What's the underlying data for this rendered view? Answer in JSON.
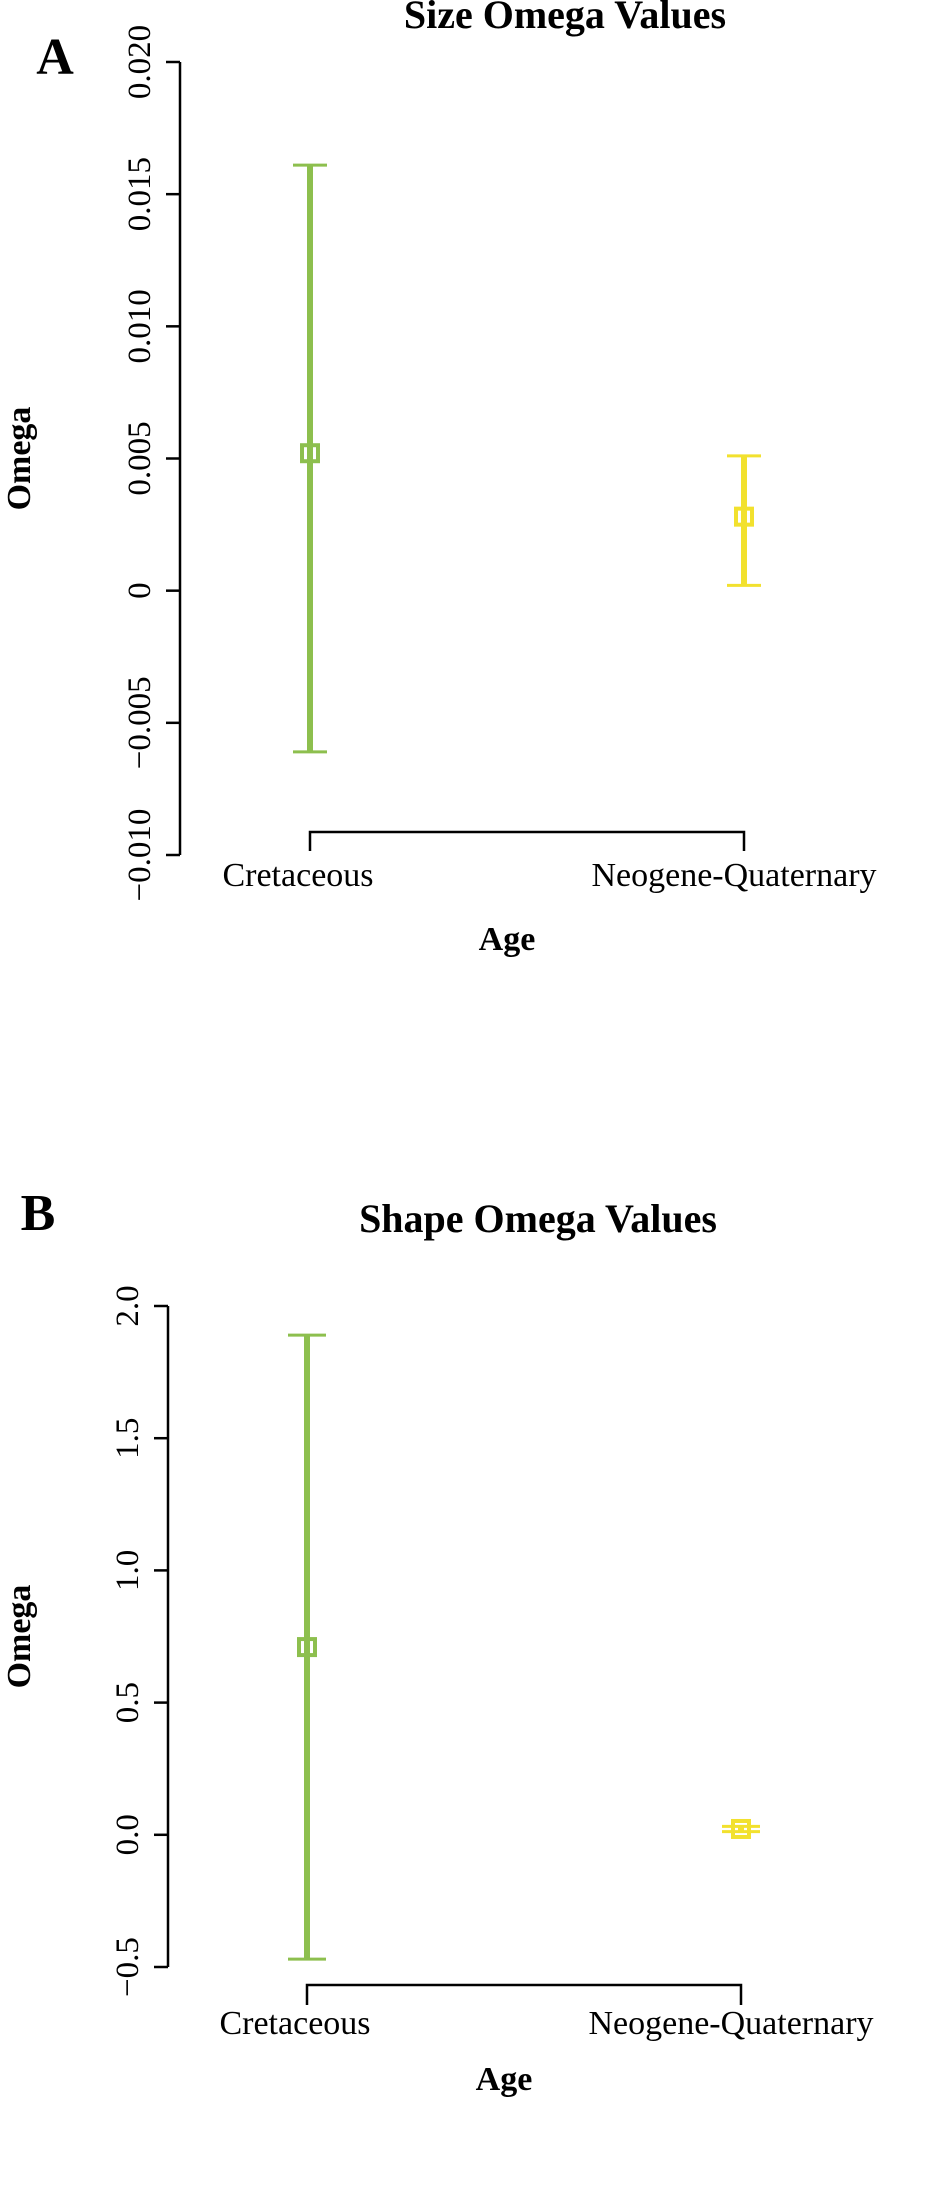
{
  "colors": {
    "Cretaceous": "#8dbf4e",
    "Neogene-Quaternary": "#f2e12e",
    "axis": "#000000"
  },
  "chart_data": [
    {
      "type": "errorbar",
      "panel_label": "A",
      "title": "Size Omega Values",
      "xlabel": "Age",
      "ylabel": "Omega",
      "ylim": [
        -0.01,
        0.02
      ],
      "yticks": [
        -0.01,
        -0.005,
        0,
        0.005,
        0.01,
        0.015,
        0.02
      ],
      "ytick_labels": [
        "−0.010",
        "−0.005",
        "0",
        "0.005",
        "0.010",
        "0.015",
        "0.020"
      ],
      "categories": [
        "Cretaceous",
        "Neogene-Quaternary"
      ],
      "series": [
        {
          "name": "Cretaceous",
          "value": 0.0052,
          "lower": -0.0061,
          "upper": 0.0161
        },
        {
          "name": "Neogene-Quaternary",
          "value": 0.0028,
          "lower": 0.0002,
          "upper": 0.0051
        }
      ],
      "grid": false
    },
    {
      "type": "errorbar",
      "panel_label": "B",
      "title": "Shape Omega Values",
      "xlabel": "Age",
      "ylabel": "Omega",
      "ylim": [
        -0.5,
        2.0
      ],
      "yticks": [
        -0.5,
        0.0,
        0.5,
        1.0,
        1.5,
        2.0
      ],
      "ytick_labels": [
        "−0.5",
        "0.0",
        "0.5",
        "1.0",
        "1.5",
        "2.0"
      ],
      "categories": [
        "Cretaceous",
        "Neogene-Quaternary"
      ],
      "series": [
        {
          "name": "Cretaceous",
          "value": 0.71,
          "lower": -0.47,
          "upper": 1.89
        },
        {
          "name": "Neogene-Quaternary",
          "value": 0.022,
          "lower": 0.012,
          "upper": 0.032
        }
      ],
      "grid": false
    }
  ]
}
